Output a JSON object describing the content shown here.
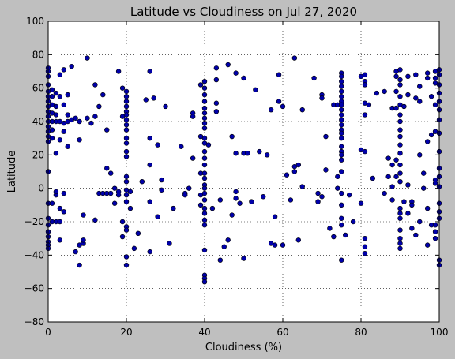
{
  "chart_data": {
    "type": "scatter",
    "title": "Latitude vs Cloudiness on Jul 27, 2020",
    "xlabel": "Cloudiness (%)",
    "ylabel": "Latitude",
    "xlim": [
      0,
      100
    ],
    "ylim": [
      -80,
      100
    ],
    "xticks": [
      0,
      20,
      40,
      60,
      80,
      100
    ],
    "yticks": [
      -80,
      -60,
      -40,
      -20,
      0,
      20,
      40,
      60,
      80,
      100
    ],
    "grid": true,
    "marker_color": "#0000aa",
    "points": [
      [
        0,
        72
      ],
      [
        0,
        70
      ],
      [
        0,
        67
      ],
      [
        0,
        62
      ],
      [
        0,
        58
      ],
      [
        0,
        55
      ],
      [
        0,
        52
      ],
      [
        0,
        49
      ],
      [
        0,
        46
      ],
      [
        0,
        43
      ],
      [
        0,
        40
      ],
      [
        0,
        37
      ],
      [
        0,
        34
      ],
      [
        0,
        31
      ],
      [
        0,
        28
      ],
      [
        0,
        10
      ],
      [
        0,
        -9
      ],
      [
        0,
        -18
      ],
      [
        0,
        -22
      ],
      [
        0,
        -26
      ],
      [
        0,
        -29
      ],
      [
        0,
        -32
      ],
      [
        0,
        -34
      ],
      [
        0,
        -36
      ],
      [
        1,
        59
      ],
      [
        1,
        55
      ],
      [
        1,
        50
      ],
      [
        1,
        45
      ],
      [
        1,
        40
      ],
      [
        1,
        35
      ],
      [
        1,
        30
      ],
      [
        1,
        -9
      ],
      [
        1,
        -20
      ],
      [
        2,
        57
      ],
      [
        2,
        49
      ],
      [
        2,
        44
      ],
      [
        2,
        40
      ],
      [
        2,
        21
      ],
      [
        2,
        -4
      ],
      [
        2,
        -2
      ],
      [
        2,
        -20
      ],
      [
        3,
        68
      ],
      [
        3,
        55
      ],
      [
        3,
        40
      ],
      [
        3,
        29
      ],
      [
        3,
        -12
      ],
      [
        3,
        -20
      ],
      [
        3,
        -31
      ],
      [
        4,
        71
      ],
      [
        4,
        50
      ],
      [
        4,
        39
      ],
      [
        4,
        34
      ],
      [
        4,
        -3
      ],
      [
        4,
        -14
      ],
      [
        5,
        56
      ],
      [
        5,
        44
      ],
      [
        5,
        40
      ],
      [
        5,
        25
      ],
      [
        6,
        73
      ],
      [
        6,
        41
      ],
      [
        7,
        42
      ],
      [
        7,
        -38
      ],
      [
        8,
        40
      ],
      [
        8,
        29
      ],
      [
        8,
        -34
      ],
      [
        8,
        -46
      ],
      [
        9,
        -16
      ],
      [
        9,
        -33
      ],
      [
        9,
        -31
      ],
      [
        10,
        78
      ],
      [
        10,
        42
      ],
      [
        11,
        39
      ],
      [
        12,
        62
      ],
      [
        12,
        43
      ],
      [
        12,
        -19
      ],
      [
        13,
        49
      ],
      [
        13,
        -3
      ],
      [
        14,
        56
      ],
      [
        14,
        -3
      ],
      [
        15,
        35
      ],
      [
        15,
        12
      ],
      [
        15,
        -3
      ],
      [
        16,
        9
      ],
      [
        16,
        -3
      ],
      [
        17,
        0
      ],
      [
        17,
        -9
      ],
      [
        18,
        70
      ],
      [
        18,
        -2
      ],
      [
        18,
        -4
      ],
      [
        19,
        60
      ],
      [
        19,
        43
      ],
      [
        19,
        -20
      ],
      [
        19,
        -29
      ],
      [
        20,
        58
      ],
      [
        20,
        55
      ],
      [
        20,
        52
      ],
      [
        20,
        49
      ],
      [
        20,
        46
      ],
      [
        20,
        44
      ],
      [
        20,
        41
      ],
      [
        20,
        38
      ],
      [
        20,
        35
      ],
      [
        20,
        30
      ],
      [
        20,
        27
      ],
      [
        20,
        22
      ],
      [
        20,
        19
      ],
      [
        20,
        7
      ],
      [
        20,
        4
      ],
      [
        20,
        -1
      ],
      [
        20,
        -4
      ],
      [
        20,
        -8
      ],
      [
        20,
        -23
      ],
      [
        20,
        -25
      ],
      [
        20,
        -41
      ],
      [
        20,
        -46
      ],
      [
        21,
        -2
      ],
      [
        21,
        -12
      ],
      [
        22,
        -36
      ],
      [
        23,
        -27
      ],
      [
        24,
        4
      ],
      [
        25,
        53
      ],
      [
        26,
        70
      ],
      [
        26,
        30
      ],
      [
        26,
        14
      ],
      [
        26,
        -8
      ],
      [
        26,
        -38
      ],
      [
        27,
        54
      ],
      [
        28,
        26
      ],
      [
        28,
        -17
      ],
      [
        29,
        5
      ],
      [
        29,
        -1
      ],
      [
        30,
        49
      ],
      [
        31,
        -33
      ],
      [
        32,
        -12
      ],
      [
        34,
        25
      ],
      [
        35,
        -3
      ],
      [
        35,
        -4
      ],
      [
        36,
        0
      ],
      [
        37,
        45
      ],
      [
        37,
        43
      ],
      [
        37,
        18
      ],
      [
        39,
        62
      ],
      [
        39,
        31
      ],
      [
        39,
        9
      ],
      [
        39,
        -4
      ],
      [
        39,
        -10
      ],
      [
        40,
        64
      ],
      [
        40,
        60
      ],
      [
        40,
        56
      ],
      [
        40,
        52
      ],
      [
        40,
        48
      ],
      [
        40,
        45
      ],
      [
        40,
        42
      ],
      [
        40,
        39
      ],
      [
        40,
        36
      ],
      [
        40,
        30
      ],
      [
        40,
        27
      ],
      [
        40,
        22
      ],
      [
        40,
        18
      ],
      [
        40,
        14
      ],
      [
        40,
        9
      ],
      [
        40,
        6
      ],
      [
        40,
        2
      ],
      [
        40,
        0
      ],
      [
        40,
        -3
      ],
      [
        40,
        -7
      ],
      [
        40,
        -12
      ],
      [
        40,
        -15
      ],
      [
        40,
        -19
      ],
      [
        40,
        -22
      ],
      [
        40,
        -37
      ],
      [
        40,
        -52
      ],
      [
        40,
        -54
      ],
      [
        40,
        -56
      ],
      [
        41,
        26
      ],
      [
        42,
        -12
      ],
      [
        43,
        72
      ],
      [
        43,
        65
      ],
      [
        43,
        51
      ],
      [
        43,
        46
      ],
      [
        44,
        -7
      ],
      [
        44,
        -43
      ],
      [
        45,
        -35
      ],
      [
        46,
        74
      ],
      [
        46,
        -31
      ],
      [
        47,
        31
      ],
      [
        47,
        -16
      ],
      [
        48,
        69
      ],
      [
        48,
        21
      ],
      [
        48,
        -2
      ],
      [
        48,
        -6
      ],
      [
        49,
        -9
      ],
      [
        50,
        66
      ],
      [
        50,
        21
      ],
      [
        50,
        -42
      ],
      [
        51,
        21
      ],
      [
        52,
        -8
      ],
      [
        53,
        59
      ],
      [
        54,
        22
      ],
      [
        55,
        -5
      ],
      [
        56,
        20
      ],
      [
        57,
        -33
      ],
      [
        57,
        47
      ],
      [
        58,
        -17
      ],
      [
        58,
        -34
      ],
      [
        59,
        68
      ],
      [
        59,
        52
      ],
      [
        60,
        -34
      ],
      [
        60,
        49
      ],
      [
        61,
        8
      ],
      [
        62,
        -7
      ],
      [
        63,
        78
      ],
      [
        63,
        13
      ],
      [
        63,
        10
      ],
      [
        64,
        14
      ],
      [
        64,
        -31
      ],
      [
        65,
        47
      ],
      [
        65,
        1
      ],
      [
        68,
        66
      ],
      [
        69,
        -3
      ],
      [
        69,
        -8
      ],
      [
        70,
        56
      ],
      [
        70,
        54
      ],
      [
        70,
        -5
      ],
      [
        71,
        31
      ],
      [
        71,
        11
      ],
      [
        72,
        -24
      ],
      [
        73,
        50
      ],
      [
        73,
        -29
      ],
      [
        74,
        50
      ],
      [
        74,
        7
      ],
      [
        74,
        0
      ],
      [
        75,
        69
      ],
      [
        75,
        67
      ],
      [
        75,
        64
      ],
      [
        75,
        61
      ],
      [
        75,
        58
      ],
      [
        75,
        55
      ],
      [
        75,
        52
      ],
      [
        75,
        50
      ],
      [
        75,
        47
      ],
      [
        75,
        44
      ],
      [
        75,
        41
      ],
      [
        75,
        38
      ],
      [
        75,
        35
      ],
      [
        75,
        33
      ],
      [
        75,
        30
      ],
      [
        75,
        25
      ],
      [
        75,
        22
      ],
      [
        75,
        20
      ],
      [
        75,
        17
      ],
      [
        75,
        10
      ],
      [
        75,
        -3
      ],
      [
        75,
        -10
      ],
      [
        75,
        -18
      ],
      [
        75,
        -22
      ],
      [
        75,
        -43
      ],
      [
        76,
        -28
      ],
      [
        77,
        -4
      ],
      [
        78,
        -20
      ],
      [
        80,
        67
      ],
      [
        80,
        23
      ],
      [
        80,
        -9
      ],
      [
        81,
        68
      ],
      [
        81,
        64
      ],
      [
        81,
        62
      ],
      [
        81,
        51
      ],
      [
        81,
        44
      ],
      [
        81,
        22
      ],
      [
        81,
        -30
      ],
      [
        81,
        -35
      ],
      [
        81,
        -39
      ],
      [
        82,
        50
      ],
      [
        83,
        6
      ],
      [
        84,
        57
      ],
      [
        86,
        58
      ],
      [
        86,
        -3
      ],
      [
        87,
        18
      ],
      [
        87,
        7
      ],
      [
        88,
        48
      ],
      [
        88,
        14
      ],
      [
        88,
        1
      ],
      [
        88,
        -7
      ],
      [
        89,
        70
      ],
      [
        89,
        67
      ],
      [
        89,
        58
      ],
      [
        89,
        48
      ],
      [
        89,
        17
      ],
      [
        89,
        7
      ],
      [
        90,
        71
      ],
      [
        90,
        65
      ],
      [
        90,
        62
      ],
      [
        90,
        55
      ],
      [
        90,
        50
      ],
      [
        90,
        44
      ],
      [
        90,
        40
      ],
      [
        90,
        35
      ],
      [
        90,
        31
      ],
      [
        90,
        26
      ],
      [
        90,
        21
      ],
      [
        90,
        14
      ],
      [
        90,
        9
      ],
      [
        90,
        4
      ],
      [
        90,
        -12
      ],
      [
        90,
        -15
      ],
      [
        90,
        -18
      ],
      [
        90,
        -25
      ],
      [
        90,
        -30
      ],
      [
        90,
        -33
      ],
      [
        90,
        -36
      ],
      [
        91,
        49
      ],
      [
        91,
        -8
      ],
      [
        92,
        67
      ],
      [
        92,
        56
      ],
      [
        92,
        2
      ],
      [
        92,
        -15
      ],
      [
        93,
        -8
      ],
      [
        93,
        -10
      ],
      [
        93,
        -24
      ],
      [
        94,
        68
      ],
      [
        94,
        54
      ],
      [
        94,
        -28
      ],
      [
        95,
        61
      ],
      [
        95,
        52
      ],
      [
        95,
        20
      ],
      [
        95,
        -20
      ],
      [
        96,
        9
      ],
      [
        96,
        0
      ],
      [
        97,
        69
      ],
      [
        97,
        66
      ],
      [
        97,
        28
      ],
      [
        97,
        -12
      ],
      [
        97,
        -34
      ],
      [
        98,
        55
      ],
      [
        98,
        32
      ],
      [
        98,
        -22
      ],
      [
        99,
        70
      ],
      [
        99,
        66
      ],
      [
        99,
        63
      ],
      [
        99,
        50
      ],
      [
        99,
        34
      ],
      [
        99,
        5
      ],
      [
        99,
        3
      ],
      [
        99,
        -22
      ],
      [
        99,
        -26
      ],
      [
        99,
        -30
      ],
      [
        100,
        71
      ],
      [
        100,
        68
      ],
      [
        100,
        62
      ],
      [
        100,
        57
      ],
      [
        100,
        52
      ],
      [
        100,
        47
      ],
      [
        100,
        41
      ],
      [
        100,
        33
      ],
      [
        100,
        22
      ],
      [
        100,
        12
      ],
      [
        100,
        7
      ],
      [
        100,
        1
      ],
      [
        100,
        -9
      ],
      [
        100,
        -14
      ],
      [
        100,
        -18
      ],
      [
        100,
        -46
      ],
      [
        100,
        -43
      ]
    ]
  }
}
